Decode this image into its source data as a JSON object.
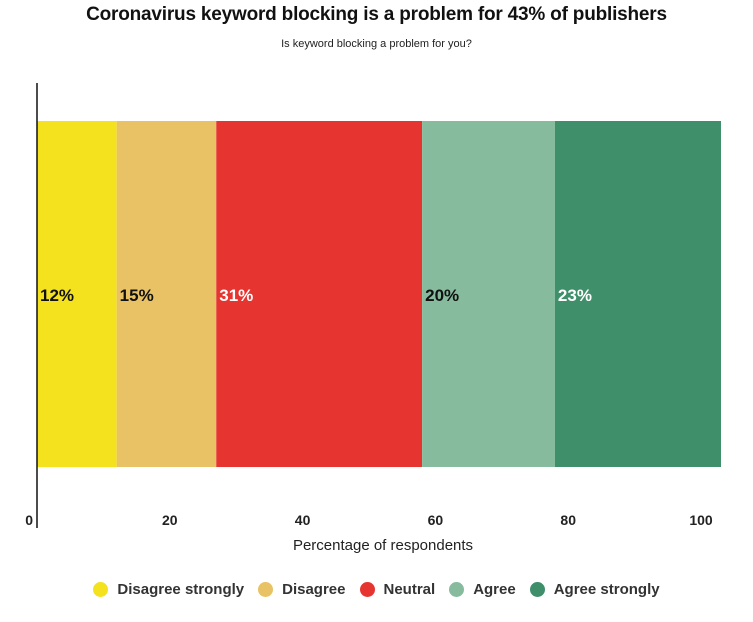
{
  "chart_data": {
    "type": "bar",
    "orientation": "horizontal-stacked",
    "title": "Coronavirus keyword blocking is a problem for 43% of publishers",
    "subtitle": "Is keyword blocking a problem for you?",
    "xlabel": "Percentage of respondents",
    "ylabel": "",
    "xlim": [
      0,
      100
    ],
    "x_ticks": [
      {
        "value": 0,
        "label": "0"
      },
      {
        "value": 20,
        "label": "20"
      },
      {
        "value": 40,
        "label": "40"
      },
      {
        "value": 60,
        "label": "60"
      },
      {
        "value": 80,
        "label": "80"
      },
      {
        "value": 100,
        "label": "100"
      }
    ],
    "grid": false,
    "legend_position": "bottom",
    "series": [
      {
        "name": "Disagree strongly",
        "value": 12,
        "label": "12%",
        "color": "#f4e21f",
        "label_color": "#111111"
      },
      {
        "name": "Disagree",
        "value": 15,
        "label": "15%",
        "color": "#e8c264",
        "label_color": "#111111"
      },
      {
        "name": "Neutral",
        "value": 31,
        "label": "31%",
        "color": "#e63431",
        "label_color": "#ffffff"
      },
      {
        "name": "Agree",
        "value": 20,
        "label": "20%",
        "color": "#86bb9d",
        "label_color": "#111111"
      },
      {
        "name": "Agree strongly",
        "value": 23,
        "label": "23%",
        "color": "#3f8f6a",
        "label_color": "#ffffff"
      }
    ]
  }
}
